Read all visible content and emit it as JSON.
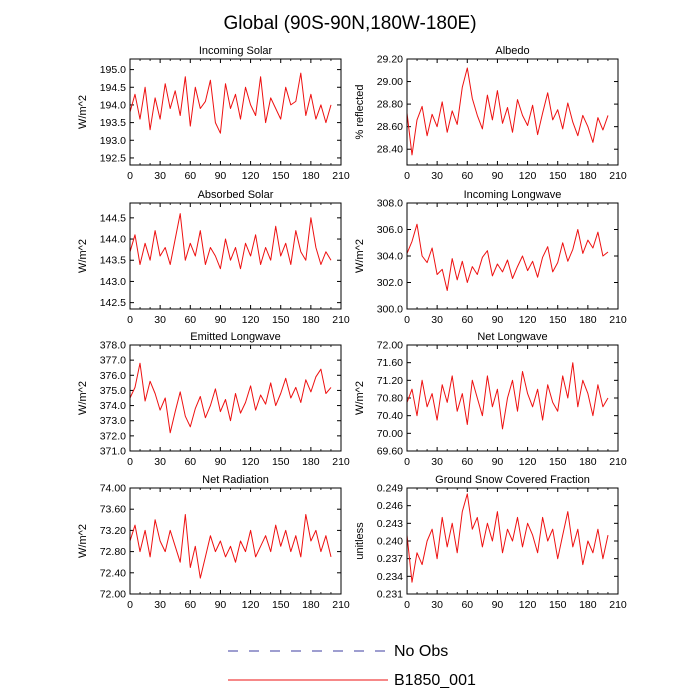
{
  "title": "Global (90S-90N,180W-180E)",
  "legend": {
    "position": "bottom-center",
    "entries": [
      {
        "label": "No Obs",
        "color": "#3c3ca0",
        "style": "dashed"
      },
      {
        "label": "B1850_001",
        "color": "#ee1111",
        "style": "solid"
      }
    ]
  },
  "line_color": "#ee1111",
  "chart_data": [
    {
      "type": "line",
      "title": "Incoming Solar",
      "xlabel": "",
      "ylabel": "W/m^2",
      "xlim": [
        0,
        210
      ],
      "ylim": [
        192.3,
        195.3
      ],
      "xticks": [
        0,
        30,
        60,
        90,
        120,
        150,
        180,
        210
      ],
      "yticks": [
        192.5,
        193.0,
        193.5,
        194.0,
        194.5,
        195.0
      ],
      "ytick_labels": [
        "192.5",
        "193.0",
        "193.5",
        "194.0",
        "194.5",
        "195.0"
      ],
      "x": [
        0,
        5,
        10,
        15,
        20,
        25,
        30,
        35,
        40,
        45,
        50,
        55,
        60,
        65,
        70,
        75,
        80,
        85,
        90,
        95,
        100,
        105,
        110,
        115,
        120,
        125,
        130,
        135,
        140,
        145,
        150,
        155,
        160,
        165,
        170,
        175,
        180,
        185,
        190,
        195,
        200
      ],
      "series": [
        {
          "name": "B1850_001",
          "values": [
            193.8,
            194.3,
            193.6,
            194.5,
            193.3,
            194.2,
            193.6,
            194.6,
            193.9,
            194.4,
            193.7,
            194.8,
            193.4,
            194.5,
            193.9,
            194.1,
            194.7,
            193.5,
            193.2,
            194.6,
            193.9,
            194.3,
            193.6,
            194.5,
            194.0,
            193.7,
            194.8,
            193.5,
            194.2,
            193.9,
            193.6,
            194.5,
            194.0,
            194.1,
            194.9,
            193.7,
            194.3,
            193.6,
            194.0,
            193.5,
            194.0
          ]
        }
      ]
    },
    {
      "type": "line",
      "title": "Albedo",
      "xlabel": "",
      "ylabel": "% reflected",
      "xlim": [
        0,
        210
      ],
      "ylim": [
        28.26,
        29.2
      ],
      "xticks": [
        0,
        30,
        60,
        90,
        120,
        150,
        180,
        210
      ],
      "yticks": [
        28.4,
        28.6,
        28.8,
        29.0,
        29.2
      ],
      "ytick_labels": [
        "28.40",
        "28.60",
        "28.80",
        "29.00",
        "29.20"
      ],
      "x": [
        0,
        5,
        10,
        15,
        20,
        25,
        30,
        35,
        40,
        45,
        50,
        55,
        60,
        65,
        70,
        75,
        80,
        85,
        90,
        95,
        100,
        105,
        110,
        115,
        120,
        125,
        130,
        135,
        140,
        145,
        150,
        155,
        160,
        165,
        170,
        175,
        180,
        185,
        190,
        195,
        200
      ],
      "series": [
        {
          "name": "B1850_001",
          "values": [
            28.72,
            28.35,
            28.66,
            28.78,
            28.52,
            28.71,
            28.6,
            28.82,
            28.55,
            28.74,
            28.62,
            28.95,
            29.12,
            28.85,
            28.7,
            28.58,
            28.88,
            28.66,
            28.92,
            28.63,
            28.77,
            28.55,
            28.84,
            28.7,
            28.61,
            28.79,
            28.53,
            28.72,
            28.9,
            28.66,
            28.75,
            28.58,
            28.81,
            28.64,
            28.52,
            28.7,
            28.6,
            28.46,
            28.68,
            28.57,
            28.7
          ]
        }
      ]
    },
    {
      "type": "line",
      "title": "Absorbed Solar",
      "xlabel": "",
      "ylabel": "W/m^2",
      "xlim": [
        0,
        210
      ],
      "ylim": [
        142.35,
        144.85
      ],
      "xticks": [
        0,
        30,
        60,
        90,
        120,
        150,
        180,
        210
      ],
      "yticks": [
        142.5,
        143.0,
        143.5,
        144.0,
        144.5
      ],
      "ytick_labels": [
        "142.5",
        "143.0",
        "143.5",
        "144.0",
        "144.5"
      ],
      "x": [
        0,
        5,
        10,
        15,
        20,
        25,
        30,
        35,
        40,
        45,
        50,
        55,
        60,
        65,
        70,
        75,
        80,
        85,
        90,
        95,
        100,
        105,
        110,
        115,
        120,
        125,
        130,
        135,
        140,
        145,
        150,
        155,
        160,
        165,
        170,
        175,
        180,
        185,
        190,
        195,
        200
      ],
      "series": [
        {
          "name": "B1850_001",
          "values": [
            143.7,
            144.1,
            143.4,
            143.9,
            143.5,
            144.2,
            143.6,
            143.8,
            143.4,
            144.0,
            144.6,
            143.5,
            143.9,
            143.6,
            144.2,
            143.4,
            143.8,
            143.6,
            143.3,
            144.0,
            143.5,
            143.8,
            143.3,
            143.9,
            143.6,
            144.1,
            143.4,
            143.8,
            143.5,
            144.3,
            143.6,
            143.9,
            143.4,
            144.2,
            143.7,
            143.5,
            144.5,
            143.8,
            143.4,
            143.7,
            143.5
          ]
        }
      ]
    },
    {
      "type": "line",
      "title": "Incoming Longwave",
      "xlabel": "",
      "ylabel": "W/m^2",
      "xlim": [
        0,
        210
      ],
      "ylim": [
        300.0,
        308.0
      ],
      "xticks": [
        0,
        30,
        60,
        90,
        120,
        150,
        180,
        210
      ],
      "yticks": [
        300.0,
        302.0,
        304.0,
        306.0,
        308.0
      ],
      "ytick_labels": [
        "300.0",
        "302.0",
        "304.0",
        "306.0",
        "308.0"
      ],
      "x": [
        0,
        5,
        10,
        15,
        20,
        25,
        30,
        35,
        40,
        45,
        50,
        55,
        60,
        65,
        70,
        75,
        80,
        85,
        90,
        95,
        100,
        105,
        110,
        115,
        120,
        125,
        130,
        135,
        140,
        145,
        150,
        155,
        160,
        165,
        170,
        175,
        180,
        185,
        190,
        195,
        200
      ],
      "series": [
        {
          "name": "B1850_001",
          "values": [
            304.2,
            305.1,
            306.4,
            304.0,
            303.5,
            304.6,
            302.6,
            303.0,
            301.4,
            303.8,
            302.2,
            303.6,
            302.0,
            303.2,
            302.6,
            303.9,
            304.4,
            302.5,
            303.4,
            302.8,
            303.7,
            302.3,
            303.2,
            304.0,
            302.9,
            303.6,
            302.4,
            303.9,
            304.7,
            302.8,
            303.5,
            305.0,
            303.6,
            304.5,
            306.0,
            304.2,
            305.2,
            304.6,
            305.8,
            304.0,
            304.3
          ]
        }
      ]
    },
    {
      "type": "line",
      "title": "Emitted Longwave",
      "xlabel": "",
      "ylabel": "W/m^2",
      "xlim": [
        0,
        210
      ],
      "ylim": [
        371.0,
        378.0
      ],
      "xticks": [
        0,
        30,
        60,
        90,
        120,
        150,
        180,
        210
      ],
      "yticks": [
        371.0,
        372.0,
        373.0,
        374.0,
        375.0,
        376.0,
        377.0,
        378.0
      ],
      "ytick_labels": [
        "371.0",
        "372.0",
        "373.0",
        "374.0",
        "375.0",
        "376.0",
        "377.0",
        "378.0"
      ],
      "x": [
        0,
        5,
        10,
        15,
        20,
        25,
        30,
        35,
        40,
        45,
        50,
        55,
        60,
        65,
        70,
        75,
        80,
        85,
        90,
        95,
        100,
        105,
        110,
        115,
        120,
        125,
        130,
        135,
        140,
        145,
        150,
        155,
        160,
        165,
        170,
        175,
        180,
        185,
        190,
        195,
        200
      ],
      "series": [
        {
          "name": "B1850_001",
          "values": [
            374.5,
            375.2,
            376.8,
            374.3,
            375.6,
            374.8,
            373.7,
            374.5,
            372.2,
            373.6,
            374.9,
            373.3,
            372.6,
            373.8,
            374.6,
            373.2,
            374.0,
            375.1,
            373.6,
            374.4,
            373.0,
            374.8,
            373.5,
            374.2,
            375.3,
            373.7,
            374.7,
            374.1,
            375.5,
            374.0,
            374.8,
            375.8,
            374.5,
            375.2,
            374.2,
            375.7,
            374.9,
            375.9,
            376.4,
            374.8,
            375.2
          ]
        }
      ]
    },
    {
      "type": "line",
      "title": "Net Longwave",
      "xlabel": "",
      "ylabel": "W/m^2",
      "xlim": [
        0,
        210
      ],
      "ylim": [
        69.6,
        72.0
      ],
      "xticks": [
        0,
        30,
        60,
        90,
        120,
        150,
        180,
        210
      ],
      "yticks": [
        69.6,
        70.0,
        70.4,
        70.8,
        71.2,
        71.6,
        72.0
      ],
      "ytick_labels": [
        "69.60",
        "70.00",
        "70.40",
        "70.80",
        "71.20",
        "71.60",
        "72.00"
      ],
      "x": [
        0,
        5,
        10,
        15,
        20,
        25,
        30,
        35,
        40,
        45,
        50,
        55,
        60,
        65,
        70,
        75,
        80,
        85,
        90,
        95,
        100,
        105,
        110,
        115,
        120,
        125,
        130,
        135,
        140,
        145,
        150,
        155,
        160,
        165,
        170,
        175,
        180,
        185,
        190,
        195,
        200
      ],
      "series": [
        {
          "name": "B1850_001",
          "values": [
            70.7,
            71.0,
            70.4,
            71.2,
            70.6,
            70.9,
            70.3,
            71.1,
            70.7,
            71.3,
            70.5,
            70.9,
            70.2,
            71.2,
            70.8,
            70.4,
            71.3,
            70.6,
            71.0,
            70.1,
            70.8,
            71.2,
            70.5,
            71.4,
            70.9,
            70.6,
            71.0,
            70.3,
            71.1,
            70.7,
            70.5,
            71.3,
            70.8,
            71.6,
            70.6,
            71.2,
            70.9,
            70.4,
            71.1,
            70.6,
            70.8
          ]
        }
      ]
    },
    {
      "type": "line",
      "title": "Net Radiation",
      "xlabel": "",
      "ylabel": "W/m^2",
      "xlim": [
        0,
        210
      ],
      "ylim": [
        72.0,
        74.0
      ],
      "xticks": [
        0,
        30,
        60,
        90,
        120,
        150,
        180,
        210
      ],
      "yticks": [
        72.0,
        72.4,
        72.8,
        73.2,
        73.6,
        74.0
      ],
      "ytick_labels": [
        "72.00",
        "72.40",
        "72.80",
        "73.20",
        "73.60",
        "74.00"
      ],
      "x": [
        0,
        5,
        10,
        15,
        20,
        25,
        30,
        35,
        40,
        45,
        50,
        55,
        60,
        65,
        70,
        75,
        80,
        85,
        90,
        95,
        100,
        105,
        110,
        115,
        120,
        125,
        130,
        135,
        140,
        145,
        150,
        155,
        160,
        165,
        170,
        175,
        180,
        185,
        190,
        195,
        200
      ],
      "series": [
        {
          "name": "B1850_001",
          "values": [
            73.0,
            73.3,
            72.8,
            73.2,
            72.7,
            73.4,
            73.0,
            72.8,
            73.2,
            72.9,
            72.6,
            73.5,
            72.5,
            72.9,
            72.3,
            72.7,
            73.1,
            72.8,
            73.0,
            72.7,
            72.9,
            72.6,
            73.0,
            72.8,
            73.2,
            72.7,
            72.9,
            73.1,
            72.8,
            73.3,
            72.9,
            73.2,
            72.8,
            73.1,
            72.7,
            73.5,
            73.0,
            73.2,
            72.8,
            73.1,
            72.7
          ]
        }
      ]
    },
    {
      "type": "line",
      "title": "Ground Snow Covered Fraction",
      "xlabel": "",
      "ylabel": "unitless",
      "xlim": [
        0,
        210
      ],
      "ylim": [
        0.231,
        0.249
      ],
      "xticks": [
        0,
        30,
        60,
        90,
        120,
        150,
        180,
        210
      ],
      "yticks": [
        0.231,
        0.234,
        0.237,
        0.24,
        0.243,
        0.246,
        0.249
      ],
      "ytick_labels": [
        "0.231",
        "0.234",
        "0.237",
        "0.240",
        "0.243",
        "0.246",
        "0.249"
      ],
      "x": [
        0,
        5,
        10,
        15,
        20,
        25,
        30,
        35,
        40,
        45,
        50,
        55,
        60,
        65,
        70,
        75,
        80,
        85,
        90,
        95,
        100,
        105,
        110,
        115,
        120,
        125,
        130,
        135,
        140,
        145,
        150,
        155,
        160,
        165,
        170,
        175,
        180,
        185,
        190,
        195,
        200
      ],
      "series": [
        {
          "name": "B1850_001",
          "values": [
            0.241,
            0.233,
            0.238,
            0.236,
            0.24,
            0.242,
            0.237,
            0.244,
            0.239,
            0.243,
            0.238,
            0.245,
            0.248,
            0.242,
            0.244,
            0.239,
            0.243,
            0.24,
            0.245,
            0.238,
            0.242,
            0.24,
            0.244,
            0.239,
            0.243,
            0.241,
            0.238,
            0.244,
            0.24,
            0.242,
            0.237,
            0.241,
            0.245,
            0.239,
            0.242,
            0.236,
            0.24,
            0.238,
            0.242,
            0.237,
            0.241
          ]
        }
      ]
    }
  ]
}
